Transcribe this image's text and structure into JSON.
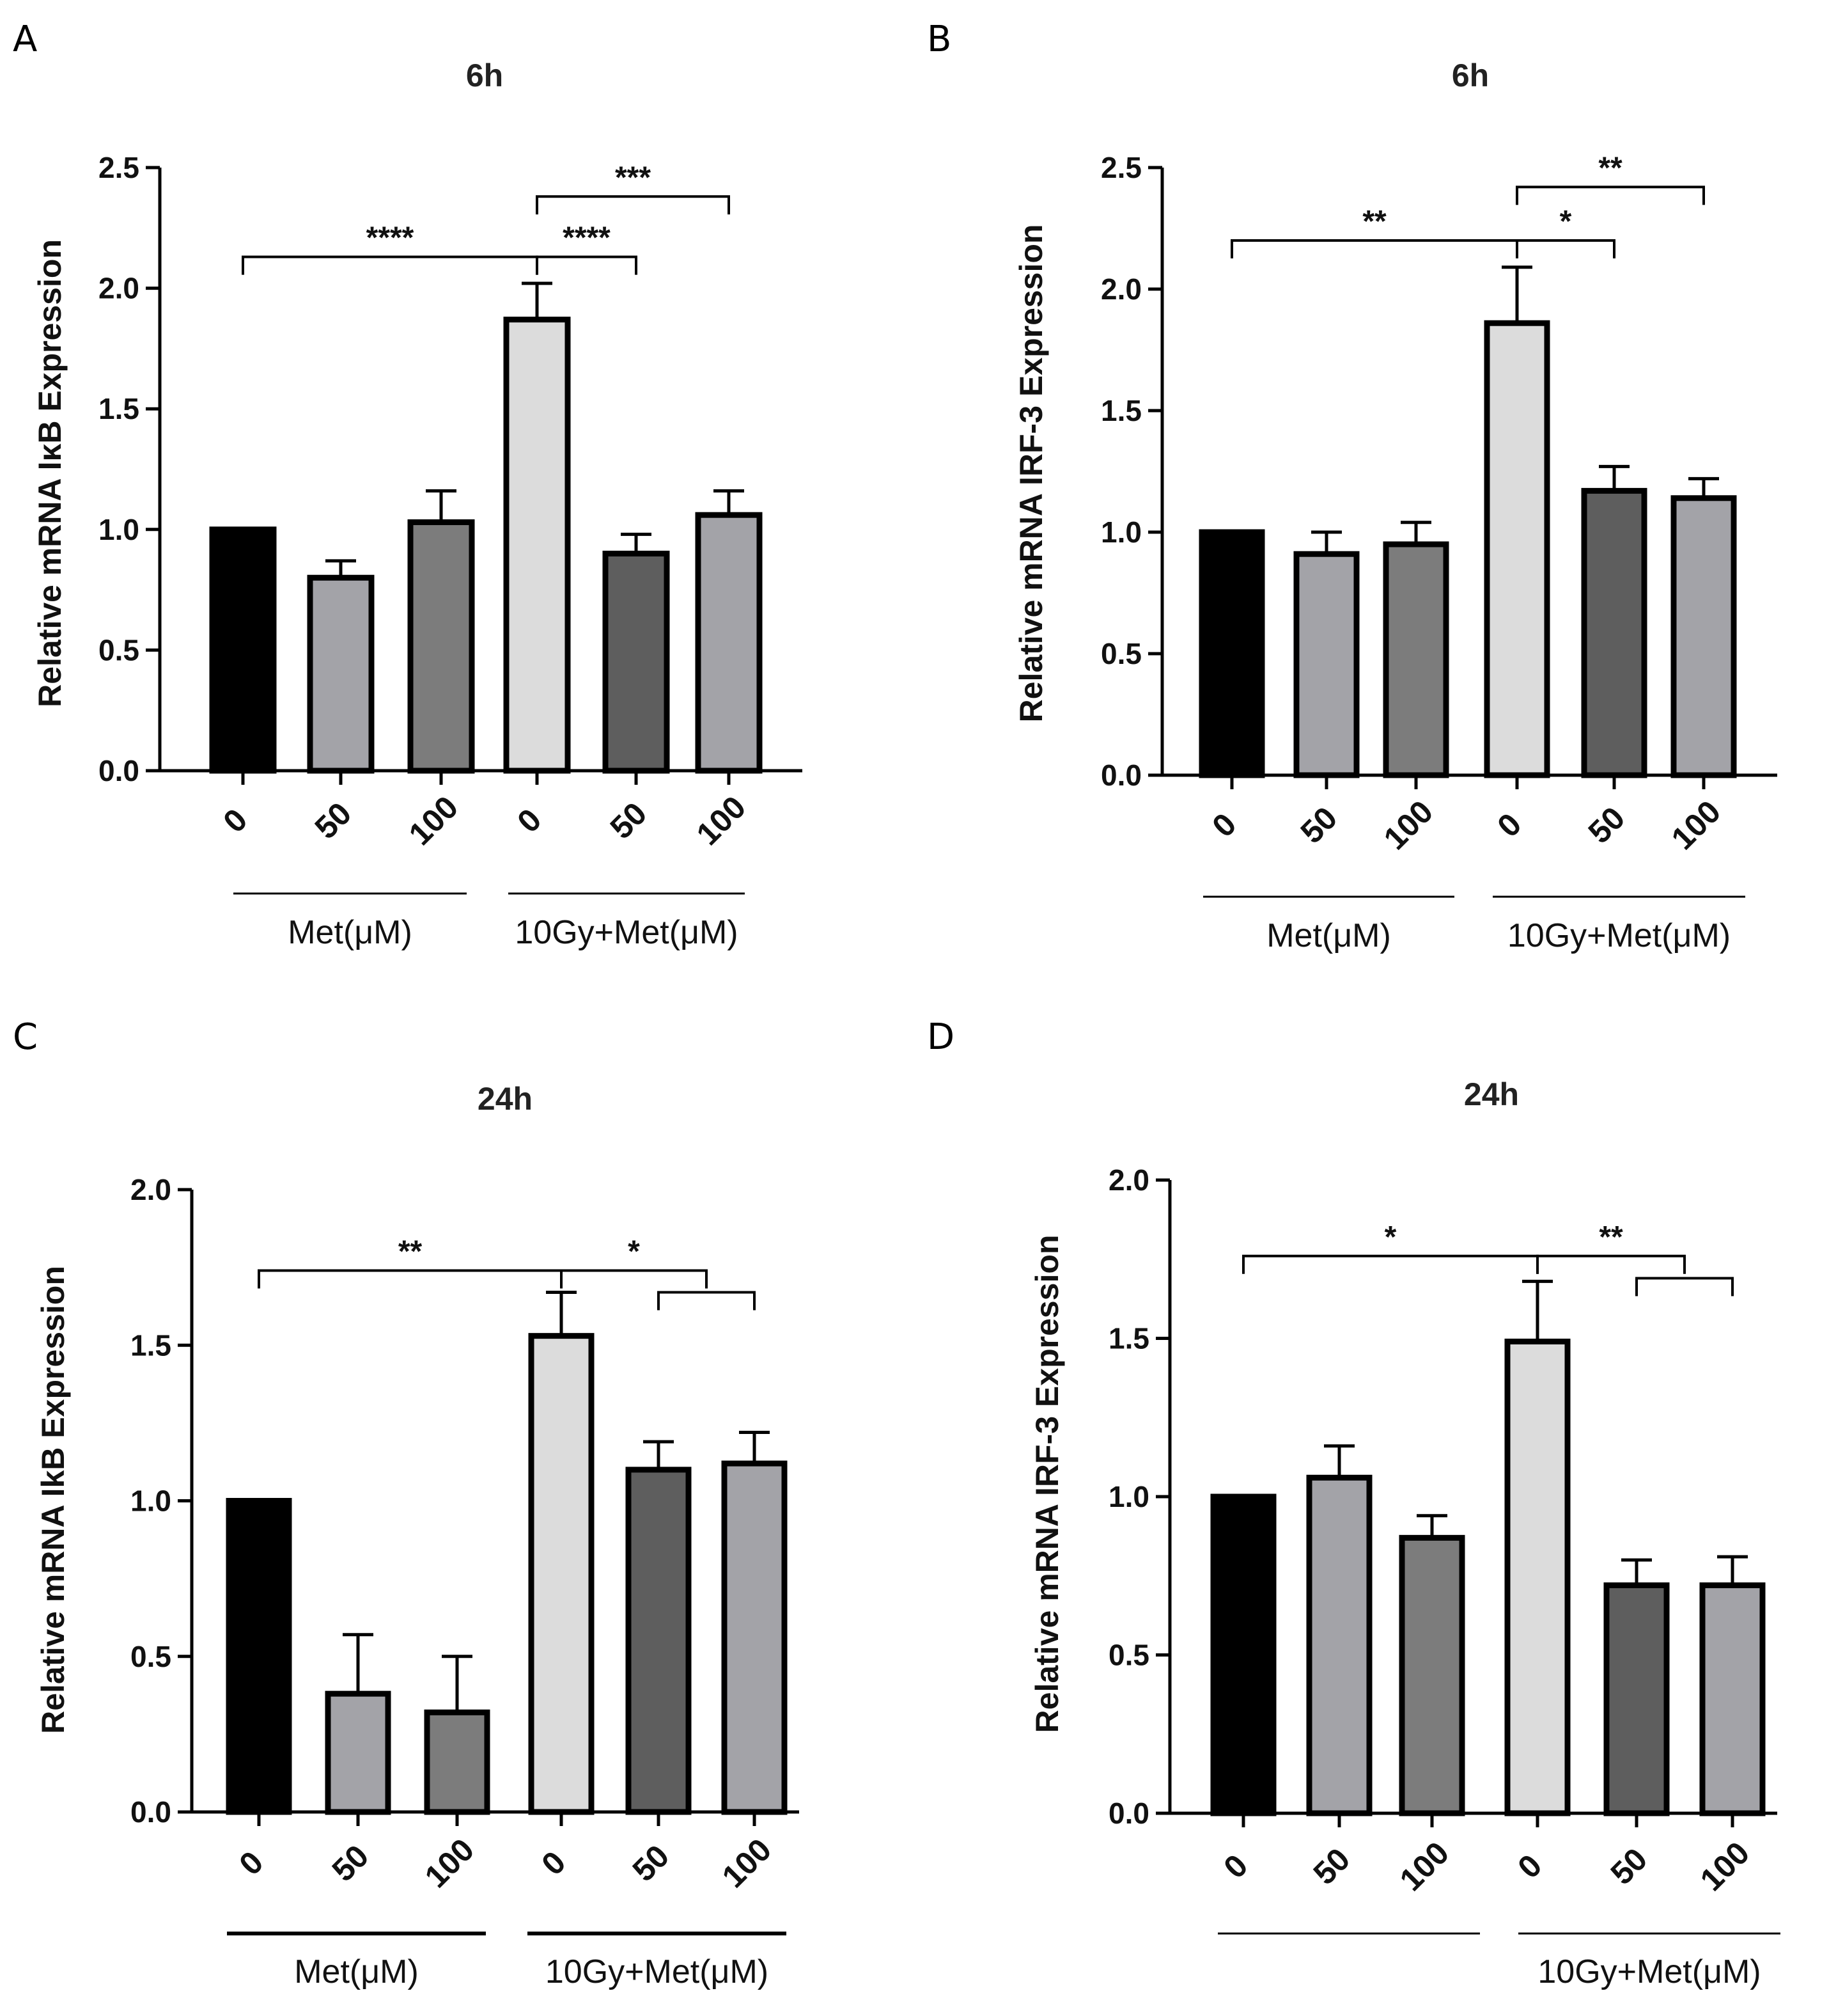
{
  "chart_data": [
    {
      "panel": "A",
      "type": "bar",
      "title": "6h",
      "ylabel": "Relative mRNA IκB Expression",
      "ylim": [
        0,
        2.5
      ],
      "yticks": [
        "0.0",
        "0.5",
        "1.0",
        "1.5",
        "2.0",
        "2.5"
      ],
      "categories": [
        "0",
        "50",
        "100",
        "0",
        "50",
        "100"
      ],
      "values": [
        1.0,
        0.8,
        1.03,
        1.87,
        0.9,
        1.06
      ],
      "errors": [
        0,
        0.07,
        0.13,
        0.15,
        0.08,
        0.1
      ],
      "colors": [
        "#000000",
        "#a3a3a8",
        "#7c7c7c",
        "#dcdcdc",
        "#5e5e5e",
        "#a3a3a8"
      ],
      "groups": [
        {
          "label": "Met(μM)",
          "from": 0,
          "to": 2
        },
        {
          "label": "10Gy+Met(μM)",
          "from": 3,
          "to": 5
        }
      ],
      "significance": [
        {
          "from": 0,
          "to": 3,
          "y": 2.13,
          "label": "****"
        },
        {
          "from": 3,
          "to": 4,
          "y": 2.13,
          "label": "****"
        },
        {
          "from": 3,
          "to": 5,
          "y": 2.38,
          "label": "***"
        }
      ]
    },
    {
      "panel": "B",
      "type": "bar",
      "title": "6h",
      "ylabel": "Relative mRNA IRF-3 Expression",
      "ylim": [
        0,
        2.5
      ],
      "yticks": [
        "0.0",
        "0.5",
        "1.0",
        "1.5",
        "2.0",
        "2.5"
      ],
      "categories": [
        "0",
        "50",
        "100",
        "0",
        "50",
        "100"
      ],
      "values": [
        1.0,
        0.91,
        0.95,
        1.86,
        1.17,
        1.14
      ],
      "errors": [
        0,
        0.09,
        0.09,
        0.23,
        0.1,
        0.08
      ],
      "colors": [
        "#000000",
        "#a3a3a8",
        "#7c7c7c",
        "#dcdcdc",
        "#5e5e5e",
        "#a3a3a8"
      ],
      "groups": [
        {
          "label": "Met(μM)",
          "from": 0,
          "to": 2
        },
        {
          "label": "10Gy+Met(μM)",
          "from": 3,
          "to": 5
        }
      ],
      "significance": [
        {
          "from": 0,
          "to": 3,
          "y": 2.2,
          "label": "**"
        },
        {
          "from": 3,
          "to": 4,
          "y": 2.2,
          "label": "*"
        },
        {
          "from": 3,
          "to": 5,
          "y": 2.42,
          "label": "**"
        }
      ]
    },
    {
      "panel": "C",
      "type": "bar",
      "title": "24h",
      "ylabel": "Relative mRNA IkB Expression",
      "ylim": [
        0,
        2.0
      ],
      "yticks": [
        "0.0",
        "0.5",
        "1.0",
        "1.5",
        "2.0"
      ],
      "categories": [
        "0",
        "50",
        "100",
        "0",
        "50",
        "100"
      ],
      "values": [
        1.0,
        0.38,
        0.32,
        1.53,
        1.1,
        1.12
      ],
      "errors": [
        0,
        0.19,
        0.18,
        0.14,
        0.09,
        0.1
      ],
      "colors": [
        "#000000",
        "#a3a3a8",
        "#7c7c7c",
        "#dcdcdc",
        "#5e5e5e",
        "#a3a3a8"
      ],
      "groups": [
        {
          "label": "Met(μM)",
          "from": 0,
          "to": 2
        },
        {
          "label": "10Gy+Met(μM)",
          "from": 3,
          "to": 5
        }
      ],
      "significance": [
        {
          "from": 0,
          "to": 3,
          "y": 1.74,
          "label": "**"
        },
        {
          "from": 3,
          "to": 4.5,
          "y": 1.74,
          "label": "*"
        },
        {
          "from": 4,
          "to": 5,
          "y": 1.67,
          "label": ""
        }
      ]
    },
    {
      "panel": "D",
      "type": "bar",
      "title": "24h",
      "ylabel": "Relative mRNA IRF-3 Expression",
      "ylim": [
        0,
        2.0
      ],
      "yticks": [
        "0.0",
        "0.5",
        "1.0",
        "1.5",
        "2.0"
      ],
      "categories": [
        "0",
        "50",
        "100",
        "0",
        "50",
        "100"
      ],
      "values": [
        1.0,
        1.06,
        0.87,
        1.49,
        0.72,
        0.72
      ],
      "errors": [
        0,
        0.1,
        0.07,
        0.19,
        0.08,
        0.09
      ],
      "colors": [
        "#000000",
        "#a3a3a8",
        "#7c7c7c",
        "#dcdcdc",
        "#5e5e5e",
        "#a3a3a8"
      ],
      "groups": [
        {
          "label": "",
          "from": 0,
          "to": 2
        },
        {
          "label": "10Gy+Met(μM)",
          "from": 3,
          "to": 5
        }
      ],
      "significance": [
        {
          "from": 0,
          "to": 3,
          "y": 1.76,
          "label": "*"
        },
        {
          "from": 3,
          "to": 4.5,
          "y": 1.76,
          "label": "**"
        },
        {
          "from": 4,
          "to": 5,
          "y": 1.69,
          "label": ""
        }
      ]
    }
  ]
}
